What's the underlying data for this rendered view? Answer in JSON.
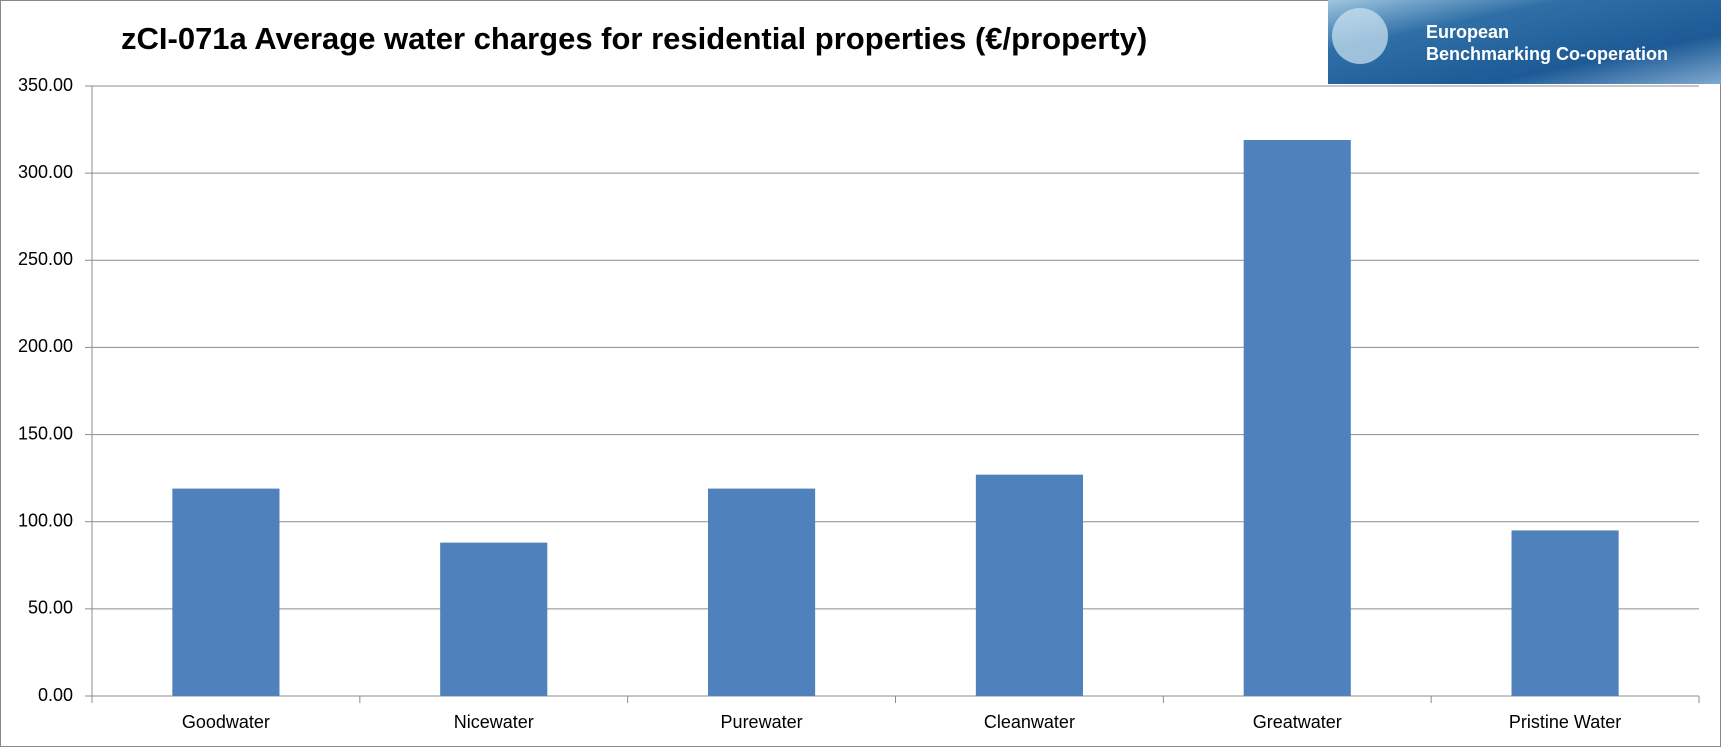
{
  "logo": [
    "European",
    "Benchmarking Co-operation"
  ],
  "chart_data": {
    "type": "bar",
    "title": "zCI-071a Average water charges for residential properties (€/property)",
    "categories": [
      "Goodwater",
      "Nicewater",
      "Purewater",
      "Cleanwater",
      "Greatwater",
      "Pristine Water"
    ],
    "values": [
      119,
      88,
      119,
      127,
      319,
      95
    ],
    "color": "#4f81bd",
    "ylim": [
      0,
      350
    ],
    "yticks": [
      {
        "value": 0,
        "label": "0.00"
      },
      {
        "value": 50,
        "label": "50.00"
      },
      {
        "value": 100,
        "label": "100.00"
      },
      {
        "value": 150,
        "label": "150.00"
      },
      {
        "value": 200,
        "label": "200.00"
      },
      {
        "value": 250,
        "label": "250.00"
      },
      {
        "value": 300,
        "label": "300.00"
      },
      {
        "value": 350,
        "label": "350.00"
      }
    ],
    "grid": true
  }
}
